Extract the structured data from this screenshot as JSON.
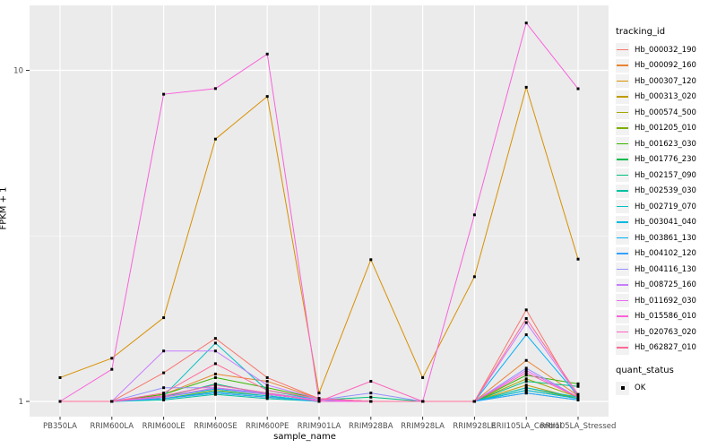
{
  "chart_data": {
    "type": "line",
    "title": "",
    "xlabel": "sample_name",
    "ylabel": "FPKM + 1",
    "yscale": "log10",
    "ylim": [
      0.88,
      15.8
    ],
    "y_ticks": [
      1,
      10
    ],
    "y_minor_breaks": [
      3.1623
    ],
    "grid": true,
    "categories": [
      "PB350LA",
      "RRIM600LA",
      "RRIM600LE",
      "RRIM600SE",
      "RRIM600PE",
      "RRIM901LA",
      "RRIM928BA",
      "RRIM928LA",
      "RRIM928LE",
      "RRII105LA_Control",
      "RRII105LA_Stressed"
    ],
    "series": [
      {
        "name": "Hb_000032_190",
        "color": "#F8766D",
        "values": [
          1.0,
          1.0,
          1.22,
          1.55,
          1.18,
          1.02,
          1.0,
          1.0,
          1.0,
          1.89,
          1.02
        ]
      },
      {
        "name": "Hb_000092_160",
        "color": "#EA8331",
        "values": [
          1.0,
          1.0,
          1.05,
          1.21,
          1.15,
          1.02,
          1.0,
          1.0,
          1.0,
          1.33,
          1.04
        ]
      },
      {
        "name": "Hb_000307_120",
        "color": "#D89000",
        "values": [
          1.18,
          1.35,
          1.79,
          6.2,
          8.34,
          1.06,
          2.68,
          1.18,
          2.38,
          8.89,
          2.69
        ]
      },
      {
        "name": "Hb_000313_020",
        "color": "#C09B00",
        "values": [
          1.0,
          1.0,
          1.03,
          1.1,
          1.05,
          1.01,
          1.0,
          1.0,
          1.0,
          1.12,
          1.02
        ]
      },
      {
        "name": "Hb_000574_500",
        "color": "#A3A500",
        "values": [
          1.0,
          1.0,
          1.04,
          1.12,
          1.06,
          1.01,
          1.0,
          1.0,
          1.0,
          1.17,
          1.03
        ]
      },
      {
        "name": "Hb_001205_010",
        "color": "#7CAE00",
        "values": [
          1.0,
          1.0,
          1.02,
          1.08,
          1.04,
          1.0,
          1.0,
          1.0,
          1.0,
          1.1,
          1.02
        ]
      },
      {
        "name": "Hb_001623_030",
        "color": "#39B600",
        "values": [
          1.0,
          1.0,
          1.05,
          1.18,
          1.1,
          1.02,
          1.0,
          1.0,
          1.0,
          1.2,
          1.13
        ]
      },
      {
        "name": "Hb_001776_230",
        "color": "#00BB4E",
        "values": [
          1.0,
          1.0,
          1.02,
          1.06,
          1.03,
          1.0,
          1.0,
          1.0,
          1.0,
          1.08,
          1.02
        ]
      },
      {
        "name": "Hb_002157_090",
        "color": "#00BF7D",
        "values": [
          1.0,
          1.0,
          1.03,
          1.13,
          1.05,
          1.01,
          1.03,
          1.0,
          1.0,
          1.15,
          1.11
        ]
      },
      {
        "name": "Hb_002539_030",
        "color": "#00C1A3",
        "values": [
          1.0,
          1.0,
          1.01,
          1.05,
          1.02,
          1.0,
          1.0,
          1.0,
          1.0,
          1.06,
          1.01
        ]
      },
      {
        "name": "Hb_002719_070",
        "color": "#00BFC4",
        "values": [
          1.0,
          1.0,
          1.04,
          1.5,
          1.08,
          1.01,
          1.0,
          1.0,
          1.0,
          1.1,
          1.03
        ]
      },
      {
        "name": "Hb_003041_040",
        "color": "#00BAE0",
        "values": [
          1.0,
          1.0,
          1.02,
          1.07,
          1.04,
          1.0,
          1.0,
          1.0,
          1.0,
          1.08,
          1.02
        ]
      },
      {
        "name": "Hb_003861_130",
        "color": "#00B0F6",
        "values": [
          1.0,
          1.0,
          1.03,
          1.09,
          1.05,
          1.01,
          1.0,
          1.0,
          1.0,
          1.59,
          1.04
        ]
      },
      {
        "name": "Hb_004102_120",
        "color": "#35A2FF",
        "values": [
          1.0,
          1.0,
          1.02,
          1.06,
          1.03,
          1.0,
          1.0,
          1.0,
          1.0,
          1.06,
          1.01
        ]
      },
      {
        "name": "Hb_004116_130",
        "color": "#9590FF",
        "values": [
          1.0,
          1.0,
          1.1,
          1.1,
          1.06,
          1.01,
          1.06,
          1.0,
          1.0,
          1.26,
          1.03
        ]
      },
      {
        "name": "Hb_008725_160",
        "color": "#C77CFF",
        "values": [
          1.0,
          1.0,
          1.42,
          1.42,
          1.12,
          1.02,
          1.0,
          1.0,
          1.0,
          1.73,
          1.04
        ]
      },
      {
        "name": "Hb_011692_030",
        "color": "#E76BF3",
        "values": [
          1.0,
          1.0,
          1.03,
          1.1,
          1.05,
          1.01,
          1.0,
          1.0,
          1.0,
          1.24,
          1.03
        ]
      },
      {
        "name": "Hb_015586_010",
        "color": "#FA62DB",
        "values": [
          1.0,
          1.25,
          8.47,
          8.81,
          11.2,
          1.0,
          1.0,
          1.0,
          3.66,
          13.9,
          8.8
        ]
      },
      {
        "name": "Hb_020763_020",
        "color": "#FF62BC",
        "values": [
          1.0,
          1.0,
          1.04,
          1.12,
          1.06,
          1.0,
          1.15,
          1.0,
          1.0,
          1.22,
          1.03
        ]
      },
      {
        "name": "Hb_062827_010",
        "color": "#FF6A98",
        "values": [
          1.0,
          1.0,
          1.06,
          1.3,
          1.08,
          1.02,
          1.0,
          1.0,
          1.0,
          1.78,
          1.05
        ]
      }
    ],
    "point_marker": {
      "shape": "square",
      "color": "#000000",
      "label": "OK"
    },
    "legend": {
      "position": "right",
      "color_title": "tracking_id",
      "shape_title": "quant_status",
      "shape_entries": [
        "OK"
      ]
    },
    "colors": {
      "panel_bg": "#EBEBEB",
      "grid": "#FFFFFF",
      "legend_key_bg": "#F2F2F2",
      "axis_text": "#4D4D4D",
      "tick": "#333333",
      "marker": "#000000"
    }
  }
}
